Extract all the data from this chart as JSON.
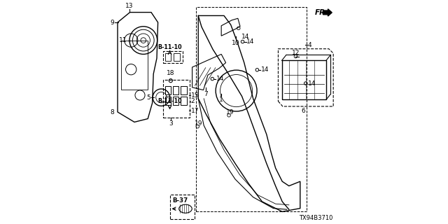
{
  "bg_color": "#ffffff",
  "line_color": "#000000",
  "diagram_id": "TX94B3710",
  "fr_label": "FR.",
  "b37_label": "B-37",
  "b1110_label": "B-11-10"
}
